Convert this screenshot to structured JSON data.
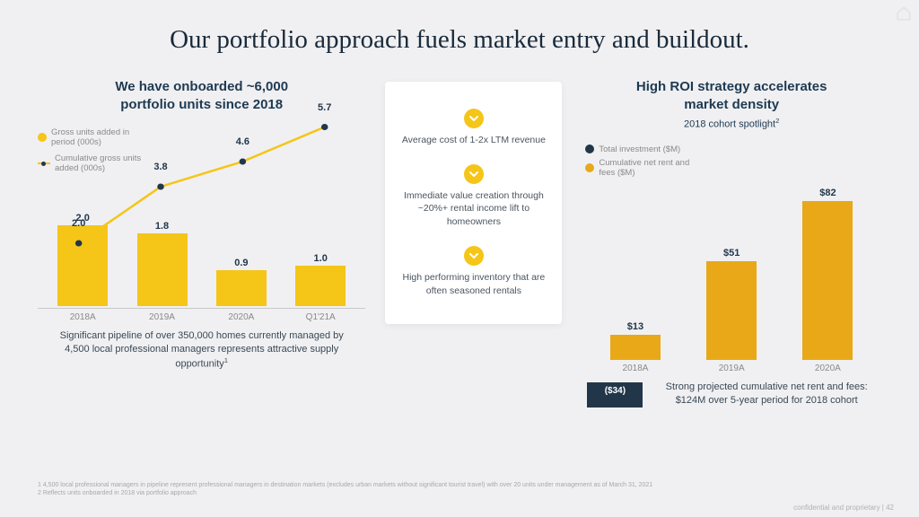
{
  "title": "Our portfolio approach fuels market entry and buildout.",
  "colors": {
    "yellow": "#f5c518",
    "orange_dark": "#e8a818",
    "navy": "#22364a",
    "bg": "#f0f0f2",
    "card_bg": "#ffffff",
    "text_dark": "#1e3a52",
    "text_body": "#4a5560",
    "text_muted": "#8a8a8a",
    "axis": "#c8c8c8"
  },
  "left_chart": {
    "subtitle_l1": "We have onboarded ~6,000",
    "subtitle_l2": "portfolio units since 2018",
    "legend_bar": "Gross units added in period (000s)",
    "legend_line": "Cumulative gross units added (000s)",
    "categories": [
      "2018A",
      "2019A",
      "2020A",
      "Q1'21A"
    ],
    "bars": [
      2.0,
      1.8,
      0.9,
      1.0
    ],
    "bar_max": 2.2,
    "line": [
      2.0,
      3.8,
      4.6,
      5.7
    ],
    "line_max": 6.0,
    "bar_color": "#f5c518",
    "line_color": "#f5c518",
    "marker_color": "#22364a",
    "caption": "Significant pipeline of over 350,000 homes currently managed by 4,500 local professional managers represents attractive supply opportunity"
  },
  "middle": {
    "chev_color": "#f5c518",
    "items": [
      "Average cost of 1-2x LTM revenue",
      "Immediate value creation through ~20%+ rental income lift to homeowners",
      "High performing inventory that are often seasoned rentals"
    ]
  },
  "right_chart": {
    "subtitle_l1": "High ROI strategy accelerates",
    "subtitle_l2": "market density",
    "subtitle_note": "2018 cohort spotlight",
    "legend_inv": "Total investment ($M)",
    "legend_rent": "Cumulative net rent and fees ($M)",
    "categories": [
      "2018A",
      "2019A",
      "2020A"
    ],
    "rent_vals": [
      13,
      51,
      82
    ],
    "rent_max": 90,
    "rent_color": "#e8a818",
    "investment": {
      "label": "($34)",
      "color": "#22364a",
      "text_color": "#ffffff"
    },
    "caption": "Strong projected cumulative net rent and fees: $124M over 5-year period for 2018 cohort"
  },
  "footnotes": [
    "1 4,500 local professional managers in pipeline represent professional managers in destination markets (excludes urban markets without significant tourist travel) with over 20 units under management as of March 31, 2021",
    "2 Reflects units onboarded in 2018 via portfolio approach"
  ],
  "pagefoot": "confidential and proprietary  |  42"
}
